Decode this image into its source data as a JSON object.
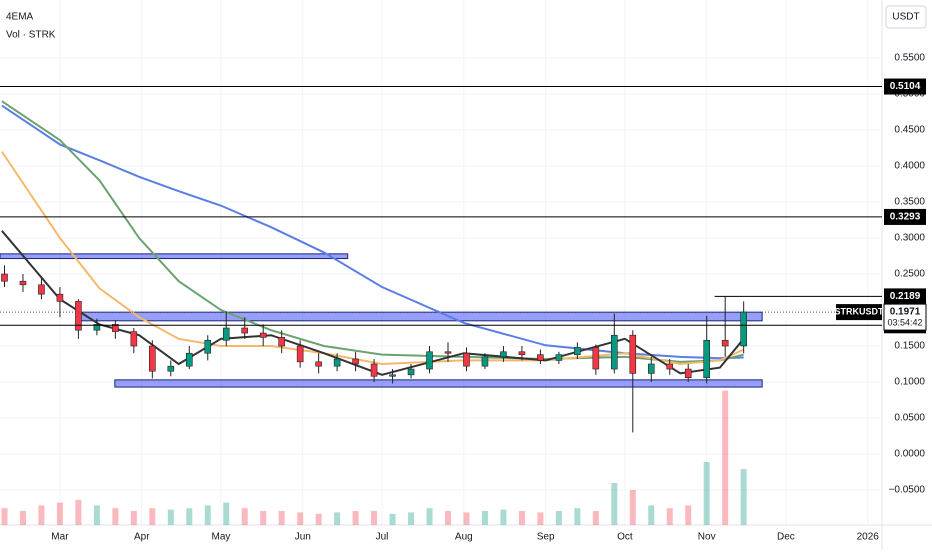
{
  "chart_data": {
    "type": "candlestick",
    "indicator_label": "4EMA",
    "xlim": [
      -22.7,
      311.4
    ],
    "ylim": [
      -0.0986,
      0.6306
    ],
    "grid": true,
    "axis_unit": "USDT",
    "xticks": [
      {
        "value": 0,
        "label": "Mar"
      },
      {
        "value": 31,
        "label": "Apr"
      },
      {
        "value": 61,
        "label": "May"
      },
      {
        "value": 92,
        "label": "Jun"
      },
      {
        "value": 122,
        "label": "Jul"
      },
      {
        "value": 153,
        "label": "Aug"
      },
      {
        "value": 184,
        "label": "Sep"
      },
      {
        "value": 214,
        "label": "Oct"
      },
      {
        "value": 245,
        "label": "Nov"
      },
      {
        "value": 275,
        "label": "Dec"
      },
      {
        "value": 306,
        "label": "2026"
      }
    ],
    "yticks": [
      {
        "value": -0.05,
        "label": "−0.0500"
      },
      {
        "value": 0,
        "label": "0.0000"
      },
      {
        "value": 0.05,
        "label": "0.0500"
      },
      {
        "value": 0.1,
        "label": "0.1000"
      },
      {
        "value": 0.15,
        "label": "0.1500"
      },
      {
        "value": 0.2,
        "label": "0.2000"
      },
      {
        "value": 0.25,
        "label": "0.2500"
      },
      {
        "value": 0.3,
        "label": "0.3000"
      },
      {
        "value": 0.35,
        "label": "0.3500"
      },
      {
        "value": 0.4,
        "label": "0.4000"
      },
      {
        "value": 0.45,
        "label": "0.4500"
      },
      {
        "value": 0.5,
        "label": "0.5000"
      },
      {
        "value": 0.55,
        "label": "0.5500"
      }
    ],
    "candles": {
      "up_color": "#089981",
      "down_color": "#f23645",
      "x": [
        -21,
        -14,
        -7,
        0,
        7,
        14,
        21,
        28,
        35,
        42,
        49,
        56,
        63,
        70,
        77,
        84,
        91,
        98,
        105,
        112,
        119,
        126,
        133,
        140,
        147,
        154,
        161,
        168,
        175,
        182,
        189,
        196,
        203,
        210,
        217,
        224,
        231,
        238,
        245,
        252,
        259
      ],
      "open": [
        0.25,
        0.24,
        0.235,
        0.222,
        0.212,
        0.172,
        0.18,
        0.17,
        0.15,
        0.115,
        0.122,
        0.14,
        0.158,
        0.175,
        0.168,
        0.162,
        0.15,
        0.128,
        0.122,
        0.132,
        0.125,
        0.108,
        0.11,
        0.118,
        0.142,
        0.14,
        0.122,
        0.135,
        0.142,
        0.138,
        0.13,
        0.138,
        0.148,
        0.118,
        0.165,
        0.112,
        0.125,
        0.118,
        0.106,
        0.158,
        0.15
      ],
      "high": [
        0.262,
        0.25,
        0.245,
        0.232,
        0.215,
        0.188,
        0.186,
        0.175,
        0.158,
        0.13,
        0.15,
        0.165,
        0.198,
        0.19,
        0.18,
        0.172,
        0.158,
        0.14,
        0.14,
        0.142,
        0.132,
        0.118,
        0.125,
        0.15,
        0.155,
        0.148,
        0.14,
        0.15,
        0.15,
        0.145,
        0.142,
        0.155,
        0.152,
        0.195,
        0.172,
        0.135,
        0.132,
        0.125,
        0.192,
        0.219,
        0.212
      ],
      "low": [
        0.232,
        0.225,
        0.215,
        0.19,
        0.16,
        0.165,
        0.16,
        0.14,
        0.105,
        0.108,
        0.118,
        0.13,
        0.15,
        0.16,
        0.15,
        0.14,
        0.12,
        0.112,
        0.115,
        0.115,
        0.1,
        0.098,
        0.105,
        0.112,
        0.128,
        0.115,
        0.118,
        0.128,
        0.13,
        0.125,
        0.125,
        0.132,
        0.11,
        0.112,
        0.03,
        0.1,
        0.11,
        0.1,
        0.098,
        0.135,
        0.14
      ],
      "close": [
        0.24,
        0.235,
        0.222,
        0.212,
        0.172,
        0.18,
        0.17,
        0.15,
        0.115,
        0.122,
        0.14,
        0.158,
        0.175,
        0.168,
        0.162,
        0.15,
        0.128,
        0.122,
        0.132,
        0.125,
        0.108,
        0.11,
        0.118,
        0.142,
        0.14,
        0.122,
        0.135,
        0.142,
        0.138,
        0.13,
        0.138,
        0.148,
        0.118,
        0.165,
        0.112,
        0.125,
        0.118,
        0.106,
        0.158,
        0.15,
        0.1971
      ]
    },
    "volume": {
      "name": "Vol · STRK",
      "vol_lim": [
        0,
        100
      ],
      "values": [
        12,
        10,
        14,
        16,
        18,
        14,
        12,
        10,
        12,
        11,
        12,
        14,
        16,
        12,
        10,
        10,
        9,
        8,
        9,
        10,
        10,
        8,
        9,
        12,
        10,
        9,
        10,
        11,
        10,
        9,
        10,
        12,
        10,
        30,
        25,
        14,
        12,
        14,
        45,
        96,
        40
      ]
    },
    "ema_x": [
      -22,
      0,
      15,
      30,
      45,
      61,
      80,
      100,
      122,
      153,
      184,
      214,
      235,
      250,
      259
    ],
    "series": [
      {
        "color": "#5b7ee5",
        "values": [
          0.484,
          0.43,
          0.408,
          0.385,
          0.365,
          0.345,
          0.315,
          0.28,
          0.232,
          0.182,
          0.151,
          0.14,
          0.135,
          0.133,
          0.134
        ]
      },
      {
        "color": "#6aa36f",
        "values": [
          0.49,
          0.436,
          0.38,
          0.3,
          0.24,
          0.2,
          0.172,
          0.15,
          0.138,
          0.135,
          0.132,
          0.135,
          0.128,
          0.13,
          0.138
        ]
      },
      {
        "color": "#f5b86b",
        "values": [
          0.42,
          0.3,
          0.23,
          0.19,
          0.16,
          0.15,
          0.15,
          0.14,
          0.125,
          0.13,
          0.13,
          0.14,
          0.125,
          0.13,
          0.145
        ]
      },
      {
        "color": "#333333",
        "values": [
          0.31,
          0.215,
          0.18,
          0.165,
          0.125,
          0.16,
          0.165,
          0.14,
          0.11,
          0.14,
          0.13,
          0.16,
          0.112,
          0.12,
          0.16
        ]
      }
    ],
    "zones": [
      {
        "x": [
          -22.7,
          109
        ],
        "y": [
          0.2715,
          0.278
        ]
      },
      {
        "x": [
          6.4,
          266
        ],
        "y": [
          0.185,
          0.197
        ]
      },
      {
        "x": [
          20.8,
          266
        ],
        "y": [
          0.093,
          0.103
        ]
      }
    ],
    "levels": [
      0.5104,
      0.3293,
      0.1788
    ],
    "alert_level": {
      "value": 0.2189,
      "from": 248
    },
    "last_price": {
      "symbol": "STRKUSDT",
      "value": 0.1971,
      "countdown": "03:54:42"
    }
  }
}
